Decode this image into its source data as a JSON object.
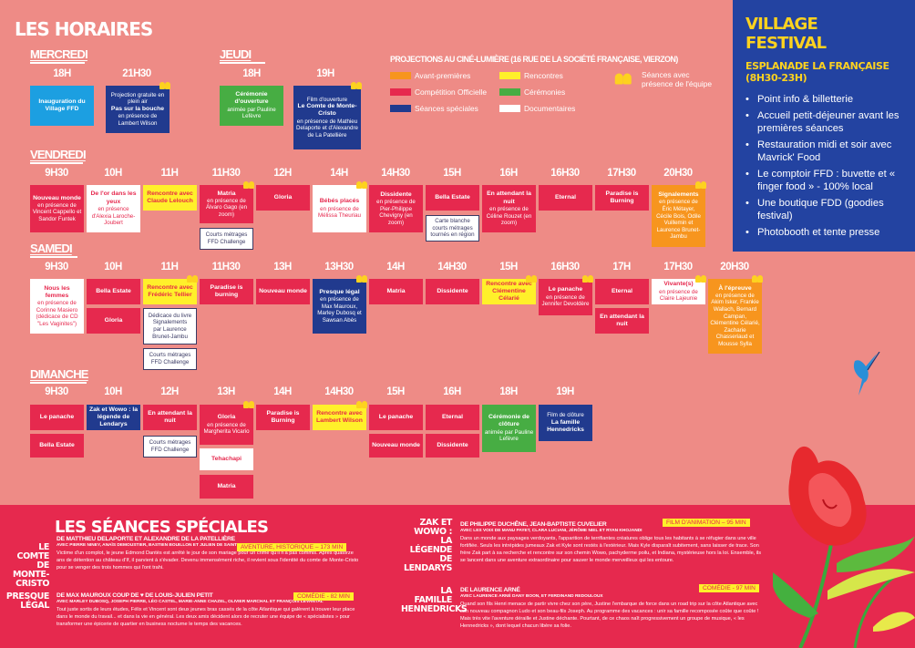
{
  "title": "LES HORAIRES",
  "days": {
    "mercredi": "MERCREDI",
    "jeudi": "JEUDI",
    "vendredi": "VENDREDI",
    "samedi": "SAMEDI",
    "dimanche": "DIMANCHE"
  },
  "mercredi": {
    "hours": [
      "18H",
      "21H30"
    ],
    "cells": [
      {
        "title": "Inauguration du Village FFD",
        "sub": ""
      },
      {
        "title": "Pas sur la bouche",
        "pre": "Projection gratuite en plein air",
        "sub": "en présence de Lambert Wilson"
      }
    ]
  },
  "jeudi": {
    "hours": [
      "18H",
      "19H"
    ],
    "cells": [
      {
        "title": "Cérémonie d'ouverture",
        "sub": "animée par Pauline Lefèvre"
      },
      {
        "title": "Le Comte de Monte-Cristo",
        "pre": "Film d'ouverture",
        "sub": "en présence de Mathieu Delaporte et d'Alexandre de La Patellière"
      }
    ]
  },
  "legend": {
    "title": "PROJECTIONS AU CINÉ-LUMIÈRE (16 RUE DE LA SOCIÉTÉ FRANÇAISE, VIERZON)",
    "items": [
      "Avant-premières",
      "Rencontres",
      "Compétition Officielle",
      "Cérémonies",
      "Séances spéciales",
      "Documentaires"
    ],
    "presence": "Séances avec présence de l'équipe",
    "colors": {
      "orange": "#f7951e",
      "yellow": "#fff02a",
      "red": "#e6294e",
      "green": "#47ad43",
      "navy": "#213a8e",
      "white": "#ffffff"
    }
  },
  "vendredi": {
    "hours": [
      "9H30",
      "10H",
      "11H",
      "11H30",
      "12H",
      "14H",
      "14H30",
      "15H",
      "16H",
      "16H30",
      "17H30",
      "20H30"
    ],
    "cells": [
      {
        "title": "Nouveau monde",
        "sub": "en présence de Vincent Cappello et Sandor Funtek"
      },
      {
        "title": "De l'or dans les yeux",
        "sub": "en présence d'Alexia Laroche-Joubert"
      },
      {
        "title": "Rencontre avec Claude Lelouch",
        "sub": ""
      },
      {
        "title": "Matria",
        "sub": "en présence de Álvaro Gago (en zoom)"
      },
      {
        "title": "Gloria",
        "sub": ""
      },
      {
        "title": "Bébés placés",
        "sub": "en présence de Mélissa Theuriau"
      },
      {
        "title": "Dissidente",
        "sub": "en présence de Pier-Philippe Chevigny (en zoom)"
      },
      {
        "title": "Bella Estate",
        "sub": ""
      },
      {
        "title": "En attendant la nuit",
        "sub": "en présence de Céline Rouzet (en zoom)"
      },
      {
        "title": "Eternal",
        "sub": ""
      },
      {
        "title": "Paradise is Burning",
        "sub": ""
      },
      {
        "title": "Signalements",
        "sub": "en présence de Éric Métayer, Cécile Bois, Odile Vuillemin et Laurence Brunet-Jambu"
      },
      {
        "title": "Courts métrages FFD Challenge",
        "sub": ""
      },
      {
        "title": "Carte blanche courts métrages tournés en région",
        "sub": ""
      }
    ]
  },
  "samedi": {
    "hours": [
      "9H30",
      "10H",
      "11H",
      "11H30",
      "13H",
      "13H30",
      "14H",
      "14H30",
      "15H",
      "16H30",
      "17H",
      "17H30",
      "20H30"
    ],
    "cells": [
      {
        "title": "Nous les femmes",
        "sub": "en présence de Corinne Masiero (dédicace de CD \"Les Vaginites\")"
      },
      {
        "title": "Bella Estate",
        "sub": ""
      },
      {
        "title": "Rencontre avec Frédéric Tellier",
        "sub": ""
      },
      {
        "title": "Paradise is burning",
        "sub": ""
      },
      {
        "title": "Nouveau monde",
        "sub": ""
      },
      {
        "title": "Presque légal",
        "sub": "en présence de Max Mauroux, Marley Dubosq et Sawsan Abès"
      },
      {
        "title": "Matria",
        "sub": ""
      },
      {
        "title": "Dissidente",
        "sub": ""
      },
      {
        "title": "Rencontre avec Clémentine Célarié",
        "sub": ""
      },
      {
        "title": "Le panache",
        "sub": "en présence de Jennifer Devoldère"
      },
      {
        "title": "Eternal",
        "sub": ""
      },
      {
        "title": "Vivante(s)",
        "sub": "en présence de Claire Lajeunie"
      },
      {
        "title": "À l'épreuve",
        "sub": "en présence de Akim Isker, Frankie Wallach, Bernard Campan, Clémentine Célarié, Zacharie Chasseriaud et Mousse Sylla"
      },
      {
        "title": "Gloria",
        "sub": ""
      },
      {
        "title": "Signalements",
        "pre": "Dédicace du livre",
        "sub": "par Laurence Brunet-Jambu"
      },
      {
        "title": "En attendant la nuit",
        "sub": ""
      },
      {
        "title": "Courts métrages FFD Challenge",
        "sub": ""
      }
    ]
  },
  "dimanche": {
    "hours": [
      "9H30",
      "10H",
      "12H",
      "13H",
      "14H",
      "14H30",
      "15H",
      "16H",
      "18H",
      "19H"
    ],
    "cells": [
      {
        "title": "Le panache",
        "sub": ""
      },
      {
        "title": "Zak et Wowo : la légende de Lendarys",
        "sub": ""
      },
      {
        "title": "En attendant la nuit",
        "sub": ""
      },
      {
        "title": "Gloria",
        "sub": "en présence de Margherita Vicario"
      },
      {
        "title": "Paradise is Burning",
        "sub": ""
      },
      {
        "title": "Rencontre avec Lambert Wilson",
        "sub": ""
      },
      {
        "title": "Le panache",
        "sub": ""
      },
      {
        "title": "Eternal",
        "sub": ""
      },
      {
        "title": "Cérémonie de clôture",
        "sub": "animée par Pauline Lefèvre"
      },
      {
        "title": "La famille Hennedricks",
        "pre": "Film de clôture",
        "sub": ""
      },
      {
        "title": "Bella Estate",
        "sub": ""
      },
      {
        "title": "Courts métrages FFD Challenge",
        "sub": ""
      },
      {
        "title": "Tehachapi",
        "sub": ""
      },
      {
        "title": "Nouveau monde",
        "sub": ""
      },
      {
        "title": "Dissidente",
        "sub": ""
      },
      {
        "title": "Matria",
        "sub": ""
      }
    ]
  },
  "village": {
    "title": "VILLAGE FESTIVAL",
    "subtitle": "ESPLANADE LA FRANÇAISE (8H30-23H)",
    "items": [
      "Point info & billetterie",
      "Accueil petit-déjeuner avant les premières séances",
      "Restauration midi et soir avec Mavrick' Food",
      "Le comptoir FFD : buvette et « finger food » - 100% local",
      "Une boutique FDD (goodies festival)",
      "Photobooth et tente presse"
    ]
  },
  "specials": {
    "title": "LES SÉANCES SPÉCIALES",
    "films": [
      {
        "name": "LE COMTE DE MONTE-CRISTO",
        "dir": "DE MATTHIEU DELAPORTE ET ALEXANDRE DE LA PATELLIÈRE",
        "cast": "AVEC PIERRE NINEY, ANAÏS DEMOUSTIER, BASTIEN BOUILLON ET JULIEN DE SAINT JEAN",
        "tag": "AVENTURE, HISTORIQUE – 173 MIN",
        "syn": "Victime d'un complot, le jeune Edmond Dantès est arrêté le jour de son mariage pour un crime qu'il n'a pas commis. Après quatorze ans de détention au château d'If, il parvient à s'évader. Devenu immensément riche, il revient sous l'identité du comte de Monte-Cristo pour se venger des trois hommes qui l'ont trahi."
      },
      {
        "name": "PRESQUE LÉGAL",
        "dir": "DE MAX MAUROUX COUP DE ♥ DE LOUIS-JULIEN PETIT",
        "cast": "AVEC MARLEY DUBOSQ, JOSEPH PIERRE, LÉO CASTEL, MARIE-ANNE CHAZEL, OLIVIER MARCHAL ET FRANÇOIS LEVANTAL",
        "tag": "COMÉDIE - 82 MIN",
        "syn": "Tout juste sortis de leurs études, Félix et Vincent sont deux jeunes bras cassés de la côte Atlantique qui galèrent à trouver leur place dans le monde du travail... et dans la vie en général. Les deux amis décident alors de recruter une équipe de « spécialistes » pour transformer une épicerie de quartier en business nocturne le temps des vacances."
      },
      {
        "name": "ZAK ET WOWO : LA LÉGENDE DE LENDARYS",
        "dir": "DE PHILIPPE DUCHÊNE, JEAN-BAPTISTE CUVELIER",
        "cast": "AVEC LES VOIX DE MANU PAYET, CLARA LUCIANI, JÉRÔME NIEL ET RYAN KHOJANDI",
        "tag": "FILM D'ANIMATION – 95 MIN",
        "syn": "Dans un monde aux paysages verdoyants, l'apparition de terrifiantes créatures oblige tous les habitants à se réfugier dans une ville fortifiée. Seuls les intrépides jumeaux Zak et Kyle sont restés à l'extérieur. Mais Kyle disparaît subitement, sans laisser de trace. Son frère Zak part à sa recherche et rencontre sur son chemin Wowo, pachyderme poilu, et Indiana, mystérieuse hors la loi. Ensemble, ils se lancent dans une aventure extraordinaire pour sauver le monde merveilleux qui les entoure."
      },
      {
        "name": "LA FAMILLE HENNEDRICKS",
        "dir": "DE LAURENCE ARNÉ",
        "cast": "AVEC LAURENCE ARNÉ DANY BOON, ET FERDINAND REDOULOUX",
        "tag": "COMÉDIE - 97 MIN",
        "syn": "Quand son fils Henri menace de partir vivre chez son père, Justine l'embarque de force dans un road trip sur la côte Atlantique avec son nouveau compagnon Ludo et son beau-fils Joseph. Au programme des vacances : unir sa famille recomposée coûte que coûte ! Mais très vite l'aventure déraille et Justine déchante. Pourtant, de ce chaos naît progressivement un groupe de musique, « les Hennedricks », dont lequel chacun libère sa folie."
      }
    ]
  }
}
